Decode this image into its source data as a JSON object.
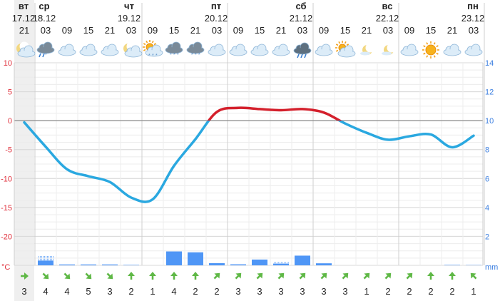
{
  "header": {
    "days": [
      {
        "day": "вт",
        "date": "17.12"
      },
      {
        "day": "ср",
        "date": "18.12"
      },
      {
        "day": "чт",
        "date": "19.12"
      },
      {
        "day": "пт",
        "date": "20.12"
      },
      {
        "day": "сб",
        "date": "21.12"
      },
      {
        "day": "вс",
        "date": "22.12"
      },
      {
        "day": "пн",
        "date": "23.12"
      }
    ],
    "hours": [
      "21",
      "03",
      "09",
      "15",
      "21",
      "03",
      "09",
      "15",
      "21",
      "03",
      "09",
      "15",
      "21",
      "03",
      "09",
      "15",
      "21",
      "03",
      "09",
      "15",
      "21",
      "03"
    ],
    "weather_icons": [
      "moon-cloud-icon",
      "rain-snow-cloud-icon",
      "cloud-icon",
      "cloud-icon",
      "cloud-icon",
      "moon-cloud-icon",
      "sun-snow-cloud-icon",
      "snow-cloud-icon",
      "snow-cloud-icon",
      "cloud-icon",
      "cloud-icon",
      "cloud-icon",
      "cloud-icon",
      "rain-cloud-icon",
      "cloud-icon",
      "sun-cloud-icon",
      "moon-icon",
      "moon-icon",
      "cloud-icon",
      "sun-icon",
      "cloud-icon",
      "cloud-icon"
    ]
  },
  "chart_data": {
    "type": "line",
    "x": [
      "17.12 21",
      "18.12 03",
      "18.12 09",
      "18.12 15",
      "18.12 21",
      "19.12 03",
      "19.12 09",
      "19.12 15",
      "19.12 21",
      "20.12 03",
      "20.12 09",
      "20.12 15",
      "20.12 21",
      "21.12 03",
      "21.12 09",
      "21.12 15",
      "21.12 21",
      "22.12 03",
      "22.12 09",
      "22.12 15",
      "22.12 21",
      "23.12 03"
    ],
    "series": [
      {
        "values": [
          -0.3,
          -4.5,
          -8.4,
          -9.6,
          -10.6,
          -13.3,
          -13.6,
          -7.8,
          -3.2,
          1.5,
          2.2,
          2.0,
          1.8,
          2.0,
          1.4,
          -0.5,
          -2.1,
          -3.3,
          -2.7,
          -2.4,
          -4.6,
          -2.6
        ]
      }
    ],
    "ylim": [
      -25,
      10
    ],
    "left_ticks": [
      "10",
      "5",
      "0",
      "-5",
      "-10",
      "-15",
      "-20"
    ],
    "left_unit": "°C",
    "y2lim": [
      0,
      14
    ],
    "right_ticks": [
      "14",
      "12",
      "10",
      "8",
      "6",
      "4",
      "2"
    ],
    "right_unit": "mm",
    "precip_bars": [
      0,
      0.33,
      0.06,
      0.06,
      0.06,
      0.03,
      0,
      0.96,
      0.9,
      0.15,
      0.07,
      0.4,
      0.12,
      0.67,
      0.14,
      0,
      0,
      0,
      0,
      0,
      0.03,
      0.02
    ],
    "precip_snow": [
      0,
      0.35,
      0,
      0,
      0,
      0,
      0,
      0,
      0,
      0,
      0,
      0,
      0.15,
      0,
      0,
      0,
      0,
      0,
      0,
      0,
      0,
      0
    ],
    "colors": {
      "cold": "#2aa8e0",
      "warm": "#d4202c",
      "bar": "#4f96f6",
      "arrow": "#5fb846"
    }
  },
  "wind": {
    "angles": [
      0,
      45,
      45,
      45,
      45,
      -90,
      -90,
      -90,
      -90,
      -45,
      -45,
      -45,
      -45,
      -45,
      -45,
      -45,
      -45,
      -45,
      -45,
      -90,
      -90,
      -135
    ],
    "speeds": [
      "3",
      "4",
      "4",
      "5",
      "3",
      "2",
      "1",
      "4",
      "2",
      "2",
      "3",
      "3",
      "3",
      "3",
      "3",
      "3",
      "1",
      "2",
      "2",
      "2",
      "2",
      "1"
    ]
  }
}
